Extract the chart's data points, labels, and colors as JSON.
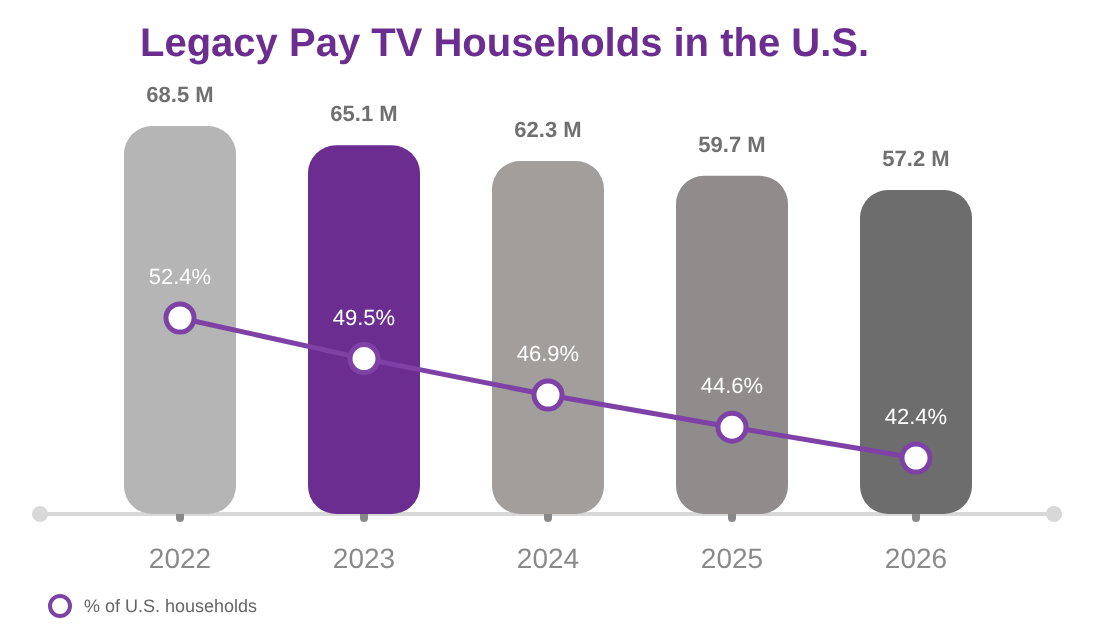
{
  "chart_data": {
    "type": "bar",
    "title": "Legacy Pay TV Households in the U.S.",
    "categories": [
      "2022",
      "2023",
      "2024",
      "2025",
      "2026"
    ],
    "series": [
      {
        "colors": [
          "#b5b5b5",
          "#6c2d91",
          "#a19e9c",
          "#8f8c8b",
          "#6e6d6d"
        ],
        "values": [
          68.5,
          65.1,
          62.3,
          59.7,
          57.2
        ],
        "value_labels": [
          "68.5 M",
          "65.1 M",
          "62.3 M",
          "59.7 M",
          "57.2 M"
        ]
      },
      {
        "type": "line",
        "name": "% of U.S. households",
        "color": "#7e42a6",
        "axis": "y2",
        "marker": "circle",
        "values": [
          52.4,
          49.5,
          46.9,
          44.6,
          42.4
        ],
        "value_labels": [
          "52.4%",
          "49.5%",
          "46.9%",
          "44.6%",
          "42.4%"
        ]
      }
    ],
    "tick_labels": "x",
    "legend": "bottom left"
  }
}
